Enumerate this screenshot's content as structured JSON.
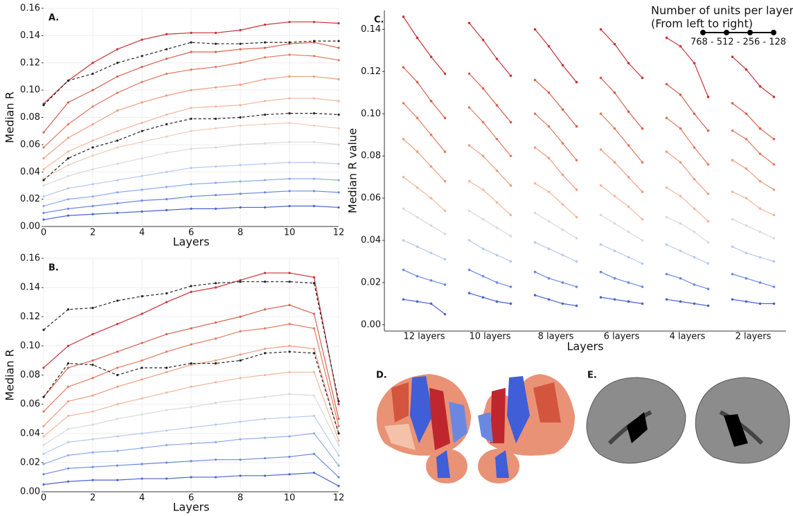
{
  "chart_data": [
    {
      "type": "line",
      "title": "A.",
      "xlabel": "Layers",
      "ylabel": "Median R",
      "grid": true,
      "x": [
        0,
        1,
        2,
        3,
        4,
        5,
        6,
        7,
        8,
        9,
        10,
        11,
        12
      ],
      "xlim": [
        0,
        12
      ],
      "xticks": [
        0,
        2,
        4,
        6,
        8,
        10,
        12
      ],
      "ylim": [
        0,
        0.16
      ],
      "yticks": [
        {
          "value": 0,
          "label": "0.00"
        },
        {
          "value": 0.02,
          "label": "0.02"
        },
        {
          "value": 0.04,
          "label": "0.04"
        },
        {
          "value": 0.06,
          "label": "0.06"
        },
        {
          "value": 0.08,
          "label": "0.08"
        },
        {
          "value": 0.1,
          "label": "0.10"
        },
        {
          "value": 0.12,
          "label": "0.12"
        },
        {
          "value": 0.14,
          "label": "0.14"
        },
        {
          "value": 0.16,
          "label": "0.16"
        }
      ],
      "series": [
        {
          "color": "#c8313a",
          "values": [
            0.09,
            0.107,
            0.12,
            0.13,
            0.137,
            0.141,
            0.142,
            0.142,
            0.144,
            0.148,
            0.15,
            0.15,
            0.149
          ]
        },
        {
          "color": "#d6604d",
          "values": [
            0.069,
            0.091,
            0.1,
            0.11,
            0.117,
            0.123,
            0.128,
            0.128,
            0.13,
            0.131,
            0.134,
            0.135,
            0.131
          ]
        },
        {
          "color": "#e07a5f",
          "values": [
            0.058,
            0.075,
            0.088,
            0.098,
            0.106,
            0.112,
            0.115,
            0.117,
            0.12,
            0.124,
            0.126,
            0.125,
            0.122
          ]
        },
        {
          "color": "#ec9c80",
          "values": [
            0.05,
            0.065,
            0.075,
            0.085,
            0.091,
            0.096,
            0.1,
            0.102,
            0.104,
            0.108,
            0.11,
            0.11,
            0.108
          ]
        },
        {
          "color": "#f4b59c",
          "values": [
            0.042,
            0.055,
            0.063,
            0.07,
            0.076,
            0.082,
            0.087,
            0.088,
            0.089,
            0.092,
            0.094,
            0.094,
            0.092
          ]
        },
        {
          "color": "#f2cbb7",
          "values": [
            0.035,
            0.045,
            0.052,
            0.058,
            0.062,
            0.066,
            0.07,
            0.072,
            0.074,
            0.075,
            0.076,
            0.074,
            0.072
          ]
        },
        {
          "color": "#d9d9d9",
          "values": [
            0.03,
            0.037,
            0.042,
            0.046,
            0.05,
            0.054,
            0.057,
            0.058,
            0.06,
            0.061,
            0.062,
            0.062,
            0.06
          ]
        },
        {
          "color": "#b5c9f0",
          "values": [
            0.022,
            0.028,
            0.031,
            0.034,
            0.037,
            0.04,
            0.043,
            0.044,
            0.045,
            0.046,
            0.047,
            0.047,
            0.046
          ]
        },
        {
          "color": "#8eaaea",
          "values": [
            0.015,
            0.02,
            0.022,
            0.025,
            0.027,
            0.029,
            0.031,
            0.032,
            0.033,
            0.034,
            0.035,
            0.035,
            0.034
          ]
        },
        {
          "color": "#6b88e0",
          "values": [
            0.01,
            0.013,
            0.015,
            0.017,
            0.019,
            0.02,
            0.022,
            0.023,
            0.024,
            0.025,
            0.026,
            0.026,
            0.025
          ]
        },
        {
          "color": "#4a62d0",
          "values": [
            0.005,
            0.008,
            0.009,
            0.01,
            0.011,
            0.012,
            0.013,
            0.013,
            0.014,
            0.014,
            0.015,
            0.015,
            0.014
          ]
        },
        {
          "color": "#222222",
          "dashed": true,
          "values": [
            0.089,
            0.107,
            0.112,
            0.12,
            0.125,
            0.13,
            0.135,
            0.134,
            0.134,
            0.135,
            0.135,
            0.136,
            0.136
          ]
        },
        {
          "color": "#222222",
          "dashed": true,
          "values": [
            0.034,
            0.05,
            0.058,
            0.063,
            0.07,
            0.075,
            0.079,
            0.079,
            0.08,
            0.082,
            0.083,
            0.083,
            0.082
          ]
        }
      ]
    },
    {
      "type": "line",
      "title": "B.",
      "xlabel": "Layers",
      "ylabel": "Median R",
      "grid": true,
      "x": [
        0,
        1,
        2,
        3,
        4,
        5,
        6,
        7,
        8,
        9,
        10,
        11,
        12
      ],
      "xlim": [
        0,
        12
      ],
      "xticks": [
        0,
        2,
        4,
        6,
        8,
        10,
        12
      ],
      "ylim": [
        0,
        0.16
      ],
      "yticks": [
        {
          "value": 0,
          "label": "0.00"
        },
        {
          "value": 0.02,
          "label": "0.02"
        },
        {
          "value": 0.04,
          "label": "0.04"
        },
        {
          "value": 0.06,
          "label": "0.06"
        },
        {
          "value": 0.08,
          "label": "0.08"
        },
        {
          "value": 0.1,
          "label": "0.10"
        },
        {
          "value": 0.12,
          "label": "0.12"
        },
        {
          "value": 0.14,
          "label": "0.14"
        },
        {
          "value": 0.16,
          "label": "0.16"
        }
      ],
      "series": [
        {
          "color": "#c8313a",
          "values": [
            0.085,
            0.1,
            0.108,
            0.115,
            0.122,
            0.13,
            0.137,
            0.14,
            0.145,
            0.15,
            0.15,
            0.147,
            0.06
          ]
        },
        {
          "color": "#d6604d",
          "values": [
            0.065,
            0.085,
            0.09,
            0.096,
            0.102,
            0.108,
            0.112,
            0.116,
            0.12,
            0.125,
            0.128,
            0.122,
            0.05
          ]
        },
        {
          "color": "#e07a5f",
          "values": [
            0.055,
            0.072,
            0.078,
            0.085,
            0.09,
            0.096,
            0.101,
            0.105,
            0.11,
            0.112,
            0.115,
            0.112,
            0.045
          ]
        },
        {
          "color": "#ec9c80",
          "values": [
            0.045,
            0.062,
            0.066,
            0.072,
            0.077,
            0.082,
            0.087,
            0.09,
            0.094,
            0.098,
            0.1,
            0.098,
            0.04
          ]
        },
        {
          "color": "#f4b59c",
          "values": [
            0.038,
            0.052,
            0.055,
            0.06,
            0.064,
            0.068,
            0.072,
            0.075,
            0.078,
            0.08,
            0.082,
            0.082,
            0.035
          ]
        },
        {
          "color": "#d9d9d9",
          "values": [
            0.032,
            0.043,
            0.046,
            0.05,
            0.053,
            0.056,
            0.058,
            0.061,
            0.063,
            0.065,
            0.067,
            0.066,
            0.032
          ]
        },
        {
          "color": "#b5c9f0",
          "values": [
            0.026,
            0.034,
            0.036,
            0.038,
            0.04,
            0.042,
            0.044,
            0.046,
            0.048,
            0.05,
            0.051,
            0.052,
            0.025
          ]
        },
        {
          "color": "#8eaaea",
          "values": [
            0.019,
            0.025,
            0.027,
            0.028,
            0.03,
            0.032,
            0.033,
            0.034,
            0.036,
            0.037,
            0.038,
            0.04,
            0.018
          ]
        },
        {
          "color": "#6b88e0",
          "values": [
            0.012,
            0.016,
            0.017,
            0.018,
            0.019,
            0.02,
            0.021,
            0.022,
            0.022,
            0.023,
            0.024,
            0.026,
            0.01
          ]
        },
        {
          "color": "#4a62d0",
          "values": [
            0.005,
            0.007,
            0.008,
            0.008,
            0.009,
            0.009,
            0.01,
            0.01,
            0.011,
            0.011,
            0.012,
            0.013,
            0.004
          ]
        },
        {
          "color": "#222222",
          "dashed": true,
          "values": [
            0.111,
            0.125,
            0.126,
            0.131,
            0.134,
            0.136,
            0.141,
            0.143,
            0.144,
            0.144,
            0.144,
            0.143,
            0.062
          ]
        },
        {
          "color": "#222222",
          "dashed": true,
          "values": [
            0.065,
            0.088,
            0.087,
            0.08,
            0.085,
            0.085,
            0.088,
            0.088,
            0.09,
            0.095,
            0.096,
            0.095,
            0.04
          ]
        }
      ]
    },
    {
      "type": "grouped-line",
      "title": "C.",
      "xlabel": "Layers",
      "ylabel": "Median R value",
      "grid": false,
      "categories": [
        "12 layers",
        "10 layers",
        "8 layers",
        "6 layers",
        "4 layers",
        "2 layers"
      ],
      "annotation": [
        "Number of units per layer:",
        "(From left to right)",
        "768 - 512 - 256 - 128"
      ],
      "ylim": [
        -0.003,
        0.149
      ],
      "yticks": [
        {
          "value": 0,
          "label": "0.00"
        },
        {
          "value": 0.02,
          "label": "0.02"
        },
        {
          "value": 0.04,
          "label": "0.04"
        },
        {
          "value": 0.06,
          "label": "0.06"
        },
        {
          "value": 0.08,
          "label": "0.08"
        },
        {
          "value": 0.1,
          "label": "0.10"
        },
        {
          "value": 0.12,
          "label": "0.12"
        },
        {
          "value": 0.14,
          "label": "0.14"
        }
      ],
      "series": [
        {
          "color": "#c8313a",
          "values": [
            [
              0.146,
              0.136,
              0.127,
              0.119
            ],
            [
              0.143,
              0.135,
              0.126,
              0.118
            ],
            [
              0.14,
              0.132,
              0.123,
              0.115
            ],
            [
              0.14,
              0.133,
              0.124,
              0.117
            ],
            [
              0.136,
              0.132,
              0.124,
              0.108
            ],
            [
              0.127,
              0.121,
              0.113,
              0.108
            ]
          ]
        },
        {
          "color": "#d6604d",
          "values": [
            [
              0.122,
              0.115,
              0.106,
              0.098
            ],
            [
              0.119,
              0.112,
              0.104,
              0.096
            ],
            [
              0.116,
              0.11,
              0.102,
              0.094
            ],
            [
              0.117,
              0.11,
              0.101,
              0.093
            ],
            [
              0.114,
              0.109,
              0.1,
              0.092
            ],
            [
              0.105,
              0.1,
              0.093,
              0.088
            ]
          ]
        },
        {
          "color": "#e07a5f",
          "values": [
            [
              0.105,
              0.098,
              0.09,
              0.082
            ],
            [
              0.103,
              0.096,
              0.088,
              0.08
            ],
            [
              0.1,
              0.094,
              0.086,
              0.078
            ],
            [
              0.1,
              0.093,
              0.085,
              0.077
            ],
            [
              0.098,
              0.093,
              0.084,
              0.076
            ],
            [
              0.092,
              0.088,
              0.081,
              0.076
            ]
          ]
        },
        {
          "color": "#ec9c80",
          "values": [
            [
              0.088,
              0.082,
              0.075,
              0.068
            ],
            [
              0.085,
              0.08,
              0.073,
              0.066
            ],
            [
              0.084,
              0.079,
              0.071,
              0.064
            ],
            [
              0.083,
              0.077,
              0.07,
              0.063
            ],
            [
              0.082,
              0.077,
              0.069,
              0.062
            ],
            [
              0.078,
              0.074,
              0.068,
              0.064
            ]
          ]
        },
        {
          "color": "#f4b59c",
          "values": [
            [
              0.07,
              0.065,
              0.06,
              0.054
            ],
            [
              0.068,
              0.064,
              0.058,
              0.052
            ],
            [
              0.067,
              0.063,
              0.057,
              0.051
            ],
            [
              0.066,
              0.061,
              0.056,
              0.05
            ],
            [
              0.065,
              0.061,
              0.055,
              0.049
            ],
            [
              0.063,
              0.06,
              0.055,
              0.052
            ]
          ]
        },
        {
          "color": "#d9d9d9",
          "values": [
            [
              0.055,
              0.051,
              0.047,
              0.043
            ],
            [
              0.054,
              0.05,
              0.046,
              0.042
            ],
            [
              0.053,
              0.049,
              0.045,
              0.041
            ],
            [
              0.052,
              0.048,
              0.044,
              0.04
            ],
            [
              0.051,
              0.048,
              0.044,
              0.039
            ],
            [
              0.05,
              0.047,
              0.044,
              0.041
            ]
          ]
        },
        {
          "color": "#b5c9f0",
          "values": [
            [
              0.04,
              0.037,
              0.034,
              0.031
            ],
            [
              0.04,
              0.036,
              0.033,
              0.03
            ],
            [
              0.039,
              0.036,
              0.033,
              0.03
            ],
            [
              0.038,
              0.035,
              0.032,
              0.029
            ],
            [
              0.038,
              0.035,
              0.032,
              0.029
            ],
            [
              0.037,
              0.034,
              0.032,
              0.03
            ]
          ]
        },
        {
          "color": "#6b88e0",
          "values": [
            [
              0.026,
              0.023,
              0.021,
              0.019
            ],
            [
              0.026,
              0.023,
              0.02,
              0.018
            ],
            [
              0.025,
              0.022,
              0.02,
              0.018
            ],
            [
              0.025,
              0.022,
              0.02,
              0.018
            ],
            [
              0.024,
              0.022,
              0.019,
              0.017
            ],
            [
              0.024,
              0.022,
              0.02,
              0.018
            ]
          ]
        },
        {
          "color": "#4a62d0",
          "values": [
            [
              0.012,
              0.011,
              0.01,
              0.005
            ],
            [
              0.015,
              0.013,
              0.011,
              0.01
            ],
            [
              0.014,
              0.012,
              0.01,
              0.009
            ],
            [
              0.013,
              0.012,
              0.011,
              0.01
            ],
            [
              0.012,
              0.011,
              0.01,
              0.009
            ],
            [
              0.012,
              0.011,
              0.01,
              0.01
            ]
          ]
        }
      ]
    }
  ],
  "figure_panels": [
    {
      "label": "D."
    },
    {
      "label": "E."
    }
  ]
}
